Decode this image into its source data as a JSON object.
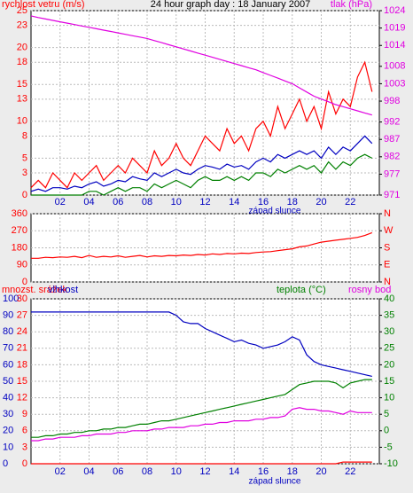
{
  "chart_data": [
    {
      "type": "line",
      "title": "24 hour graph day : 18 January 2007",
      "ylabel": "rychlost vetru (m/s)",
      "y2label": "tlak (hPa)",
      "annotation": "západ slunce",
      "x": [
        0,
        0.5,
        1,
        1.5,
        2,
        2.5,
        3,
        3.5,
        4,
        4.5,
        5,
        5.5,
        6,
        6.5,
        7,
        7.5,
        8,
        8.5,
        9,
        9.5,
        10,
        10.5,
        11,
        11.5,
        12,
        12.5,
        13,
        13.5,
        14,
        14.5,
        15,
        15.5,
        16,
        16.5,
        17,
        17.5,
        18,
        18.5,
        19,
        19.5,
        20,
        20.5,
        21,
        21.5,
        22,
        22.5,
        23,
        23.5
      ],
      "xlim": [
        0,
        24
      ],
      "xticks": [
        {
          "value": 2,
          "label": "02"
        },
        {
          "value": 4,
          "label": "04"
        },
        {
          "value": 6,
          "label": "06"
        },
        {
          "value": 8,
          "label": "08"
        },
        10,
        12,
        14,
        16,
        18,
        20,
        22
      ],
      "ylim": [
        0,
        25
      ],
      "yticks": [
        0,
        3,
        5,
        8,
        10,
        13,
        15,
        18,
        20,
        23,
        25
      ],
      "y2lim": [
        971,
        1024
      ],
      "y2ticks": [
        971,
        977,
        982,
        987,
        992,
        998,
        1003,
        1008,
        1014,
        1019,
        1024
      ],
      "xtick_color": "#0000c0",
      "ytick_color": "#ff0000",
      "y2tick_color": "#e000e0",
      "grid": true,
      "series": [
        {
          "color": "#ff0000",
          "values": [
            1,
            2,
            1,
            3,
            2,
            1,
            3,
            2,
            3,
            4,
            2,
            3,
            4,
            3,
            5,
            4,
            3,
            6,
            4,
            5,
            7,
            5,
            4,
            6,
            8,
            7,
            6,
            9,
            7,
            8,
            6,
            9,
            10,
            8,
            12,
            9,
            11,
            13,
            10,
            12,
            9,
            14,
            11,
            13,
            12,
            16,
            18,
            14
          ]
        },
        {
          "color": "#008000",
          "values": [
            0,
            0,
            0,
            0,
            0,
            0,
            0,
            0,
            0.5,
            0.5,
            0,
            0.5,
            1,
            0.5,
            1,
            1,
            0.5,
            1.5,
            1,
            1.5,
            2,
            1.5,
            1,
            2,
            2.5,
            2,
            2,
            2.5,
            2,
            2.5,
            2,
            3,
            3,
            2.5,
            3.5,
            3,
            3.5,
            4,
            3.5,
            4,
            3,
            4.5,
            3.5,
            4.5,
            4,
            5,
            5.5,
            5
          ]
        },
        {
          "color": "#0000c0",
          "values": [
            0.5,
            0.8,
            0.5,
            1,
            1,
            0.8,
            1.2,
            1,
            1.5,
            1.8,
            1.2,
            1.5,
            2,
            1.8,
            2.5,
            2.2,
            2,
            3,
            2.5,
            3,
            3.5,
            3,
            2.8,
            3.5,
            4,
            3.8,
            3.5,
            4.2,
            3.8,
            4,
            3.5,
            4.5,
            5,
            4.5,
            5.5,
            5,
            5.5,
            6,
            5.5,
            6,
            5,
            6.5,
            5.5,
            6.5,
            6,
            7,
            8,
            7
          ]
        },
        {
          "color": "#e000e0",
          "axis": "y2",
          "values": [
            1022.5,
            1022,
            1021.6,
            1021.2,
            1020.8,
            1020.4,
            1020,
            1019.6,
            1019.2,
            1018.8,
            1018.4,
            1018,
            1017.6,
            1017.2,
            1016.8,
            1016.4,
            1016,
            1015.4,
            1014.8,
            1014.2,
            1013.6,
            1013,
            1012.4,
            1011.8,
            1011.2,
            1010.6,
            1010,
            1009.4,
            1008.8,
            1008.2,
            1007.6,
            1007,
            1006.2,
            1005.4,
            1004.6,
            1003.8,
            1003,
            1001.8,
            1000.6,
            999.4,
            998.6,
            997.8,
            997,
            996.4,
            995.8,
            995.2,
            994.6,
            994
          ]
        }
      ]
    },
    {
      "type": "line",
      "x": [
        0,
        0.5,
        1,
        1.5,
        2,
        2.5,
        3,
        3.5,
        4,
        4.5,
        5,
        5.5,
        6,
        6.5,
        7,
        7.5,
        8,
        8.5,
        9,
        9.5,
        10,
        10.5,
        11,
        11.5,
        12,
        12.5,
        13,
        13.5,
        14,
        14.5,
        15,
        15.5,
        16,
        16.5,
        17,
        17.5,
        18,
        18.5,
        19,
        19.5,
        20,
        20.5,
        21,
        21.5,
        22,
        22.5,
        23,
        23.5
      ],
      "xlim": [
        0,
        24
      ],
      "xticks": [
        2,
        4,
        6,
        8,
        10,
        12,
        14,
        16,
        18,
        20,
        22
      ],
      "ylim": [
        0,
        360
      ],
      "yticks": [
        0,
        90,
        180,
        270,
        360
      ],
      "y2lim": [
        0,
        360
      ],
      "y2ticks": [
        {
          "value": 0,
          "label": "N"
        },
        {
          "value": 90,
          "label": "E"
        },
        {
          "value": 180,
          "label": "S"
        },
        {
          "value": 270,
          "label": "W"
        },
        {
          "value": 360,
          "label": "N"
        }
      ],
      "ytick_color": "#ff0000",
      "y2tick_color": "#ff0000",
      "grid": true,
      "series": [
        {
          "color": "#ff0000",
          "values": [
            125,
            125,
            130,
            128,
            132,
            130,
            135,
            128,
            140,
            130,
            135,
            132,
            138,
            130,
            135,
            140,
            132,
            138,
            135,
            140,
            138,
            142,
            140,
            145,
            142,
            148,
            145,
            150,
            148,
            152,
            150,
            155,
            158,
            160,
            165,
            170,
            175,
            185,
            190,
            200,
            210,
            215,
            220,
            225,
            230,
            235,
            245,
            260
          ]
        }
      ]
    },
    {
      "type": "line",
      "annotation": "západ slunce",
      "x": [
        0,
        0.5,
        1,
        1.5,
        2,
        2.5,
        3,
        3.5,
        4,
        4.5,
        5,
        5.5,
        6,
        6.5,
        7,
        7.5,
        8,
        8.5,
        9,
        9.5,
        10,
        10.5,
        11,
        11.5,
        12,
        12.5,
        13,
        13.5,
        14,
        14.5,
        15,
        15.5,
        16,
        16.5,
        17,
        17.5,
        18,
        18.5,
        19,
        19.5,
        20,
        20.5,
        21,
        21.5,
        22,
        22.5,
        23,
        23.5
      ],
      "xlim": [
        0,
        24
      ],
      "xticks": [
        {
          "value": 2,
          "label": "02"
        },
        {
          "value": 4,
          "label": "04"
        },
        {
          "value": 6,
          "label": "06"
        },
        {
          "value": 8,
          "label": "08"
        },
        10,
        12,
        14,
        16,
        18,
        20,
        22
      ],
      "ylim": [
        0,
        100
      ],
      "yticks": [
        0,
        10,
        20,
        30,
        40,
        50,
        60,
        70,
        80,
        90,
        100
      ],
      "y3lim": [
        0,
        30
      ],
      "y3ticks": [
        0,
        3,
        6,
        9,
        12,
        15,
        18,
        21,
        24,
        27,
        30
      ],
      "y2lim": [
        -10,
        40
      ],
      "y2ticks": [
        -10,
        -5,
        0,
        5,
        10,
        15,
        20,
        25,
        30,
        35,
        40
      ],
      "xtick_color": "#0000c0",
      "ytick_color": "#0000c0",
      "y3tick_color": "#ff0000",
      "y2tick_color": "#008000",
      "grid": true,
      "series": [
        {
          "name": "mnozst. srážek",
          "color": "#ff0000",
          "axis": "y3",
          "values": [
            0,
            0,
            0,
            0,
            0,
            0,
            0,
            0,
            0,
            0,
            0,
            0,
            0,
            0,
            0,
            0,
            0,
            0,
            0,
            0,
            0,
            0,
            0,
            0,
            0,
            0,
            0,
            0,
            0,
            0,
            0,
            0,
            0,
            0,
            0,
            0,
            0,
            0,
            0,
            0,
            0,
            0,
            0,
            0.3,
            0.3,
            0.3,
            0.3,
            0.3
          ]
        },
        {
          "name": "vlhkost",
          "color": "#0000c0",
          "values": [
            92,
            92,
            92,
            92,
            92,
            92,
            92,
            92,
            92,
            92,
            92,
            92,
            92,
            92,
            92,
            92,
            92,
            92,
            92,
            92,
            90,
            86,
            85,
            85,
            82,
            80,
            78,
            76,
            74,
            75,
            73,
            72,
            70,
            71,
            72,
            74,
            77,
            75,
            66,
            62,
            60,
            59,
            58,
            57,
            56,
            55,
            54,
            53
          ]
        },
        {
          "name": "teplota (°C)",
          "color": "#008000",
          "axis": "y2",
          "values": [
            -2,
            -2,
            -1.5,
            -1.5,
            -1,
            -1,
            -0.5,
            -0.5,
            0,
            0,
            0.5,
            0.5,
            1,
            1,
            1.5,
            2,
            2,
            2.5,
            3,
            3,
            3.5,
            4,
            4.5,
            5,
            5.5,
            6,
            6.5,
            7,
            7.5,
            8,
            8.5,
            9,
            9.5,
            10,
            10.5,
            11,
            12.5,
            14,
            14.5,
            15,
            15,
            15,
            14.5,
            13,
            14.5,
            15,
            15.5,
            15.5
          ]
        },
        {
          "name": "rosny bod",
          "color": "#e000e0",
          "axis": "y2",
          "values": [
            -3,
            -3,
            -2.5,
            -2.5,
            -2,
            -2,
            -2,
            -1.5,
            -1.5,
            -1,
            -1,
            -1,
            -0.5,
            -0.5,
            0,
            0,
            0,
            0.5,
            0.5,
            1,
            1,
            1,
            1.5,
            1.5,
            2,
            2,
            2.5,
            2.5,
            3,
            3,
            3,
            3.5,
            3.5,
            4,
            4,
            4.5,
            6.5,
            7,
            6.5,
            6.5,
            6,
            6,
            5.5,
            5,
            6,
            5.5,
            5.5,
            5.5
          ]
        }
      ]
    }
  ]
}
